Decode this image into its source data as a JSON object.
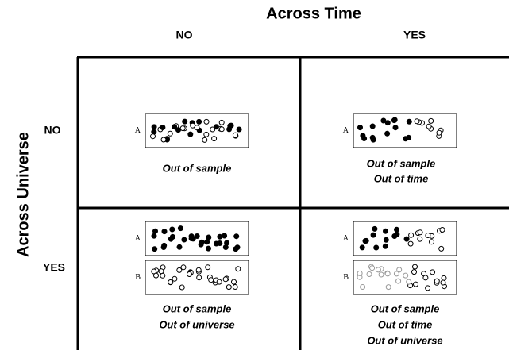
{
  "column_header": {
    "title": "Across Time",
    "columns": [
      "NO",
      "YES"
    ]
  },
  "row_header": {
    "title": "Across Universe",
    "rows": [
      "NO",
      "YES"
    ]
  },
  "cells": [
    {
      "boxes": [
        "A"
      ],
      "caption": [
        "Out of sample"
      ]
    },
    {
      "boxes": [
        "A"
      ],
      "caption": [
        "Out of sample",
        "Out of time"
      ]
    },
    {
      "boxes": [
        "A",
        "B"
      ],
      "caption": [
        "Out of sample",
        "Out of universe"
      ]
    },
    {
      "boxes": [
        "A",
        "B"
      ],
      "caption": [
        "Out of sample",
        "Out of time",
        "Out of universe"
      ]
    }
  ]
}
